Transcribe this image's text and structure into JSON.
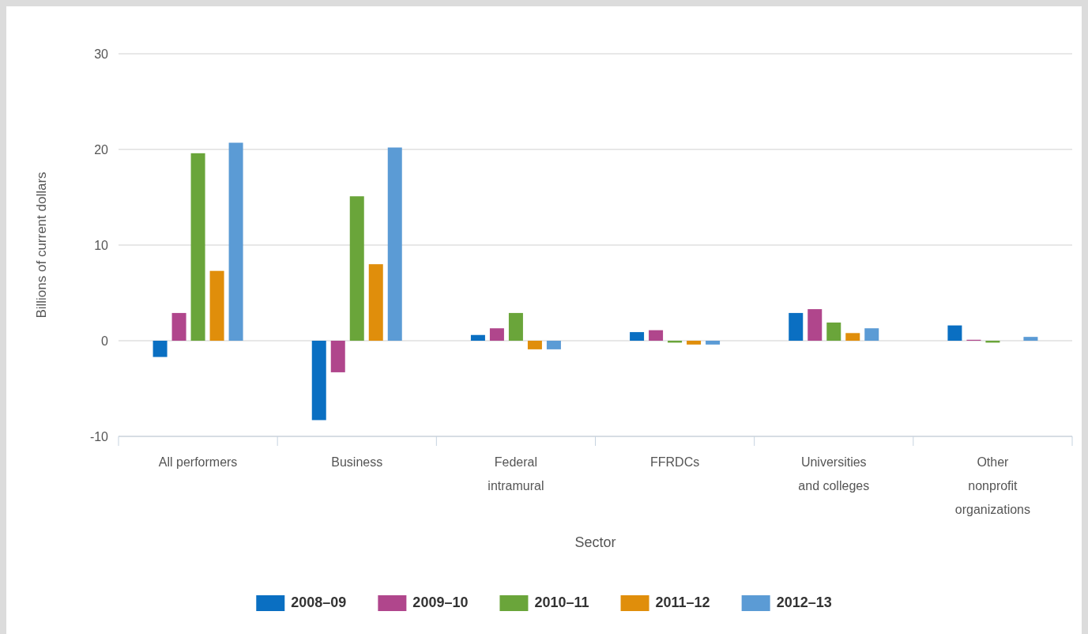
{
  "chart_data": {
    "type": "bar",
    "xlabel": "Sector",
    "ylabel": "Billions of current dollars",
    "categories": [
      "All performers",
      "Business",
      "Federal\nintramural",
      "FFRDCs",
      "Universities\nand colleges",
      "Other\nnonprofit\norganizations"
    ],
    "series": [
      {
        "name": "2008–09",
        "color": "#0a6fc2",
        "values": [
          -1.7,
          -8.3,
          0.6,
          0.9,
          2.9,
          1.6
        ]
      },
      {
        "name": "2009–10",
        "color": "#b0468c",
        "values": [
          2.9,
          -3.3,
          1.3,
          1.1,
          3.3,
          0.1
        ]
      },
      {
        "name": "2010–11",
        "color": "#6aa53a",
        "values": [
          19.6,
          15.1,
          2.9,
          -0.2,
          1.9,
          -0.2
        ]
      },
      {
        "name": "2011–12",
        "color": "#e08e0b",
        "values": [
          7.3,
          8.0,
          -0.9,
          -0.4,
          0.8,
          0.0
        ]
      },
      {
        "name": "2012–13",
        "color": "#5b9bd5",
        "values": [
          20.7,
          20.2,
          -0.9,
          -0.4,
          1.3,
          0.4
        ]
      }
    ],
    "ylim": [
      -10,
      30
    ],
    "yticks": [
      -10,
      0,
      10,
      20,
      30
    ],
    "grid": "y",
    "legend": "bottom"
  }
}
